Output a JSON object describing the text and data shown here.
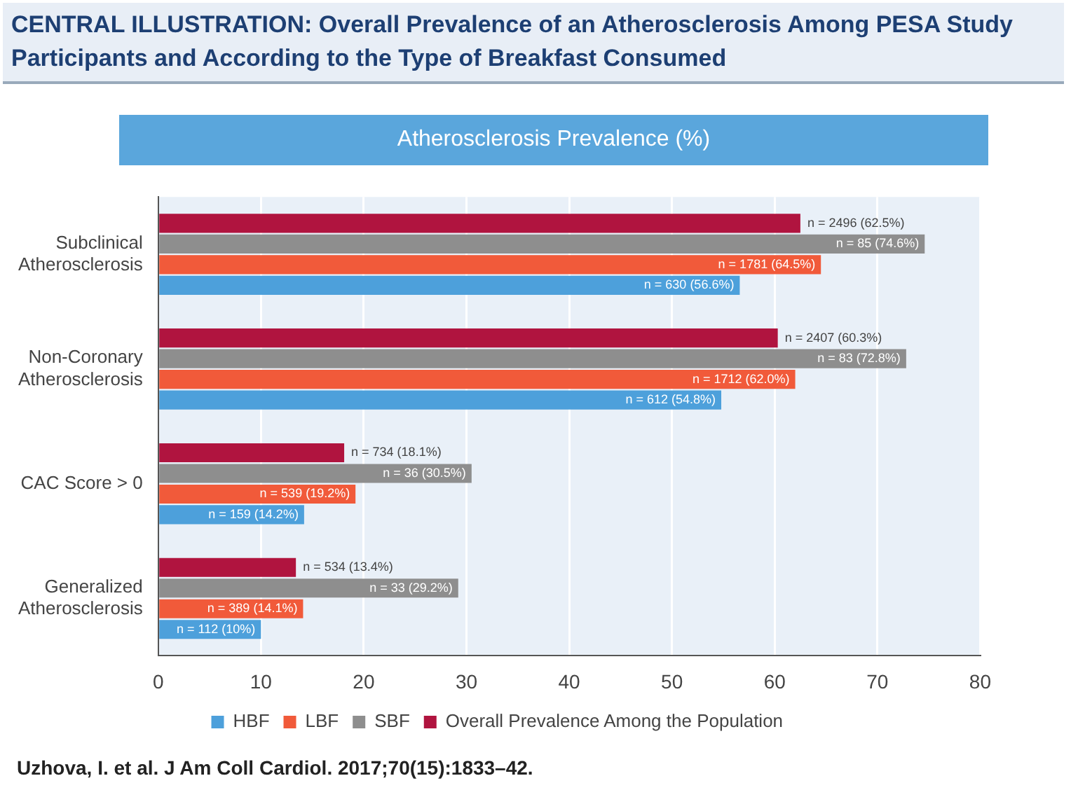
{
  "chart_data": {
    "type": "bar",
    "orientation": "horizontal",
    "title": "CENTRAL ILLUSTRATION: Overall Prevalence of an Atherosclerosis Among PESA Study Participants and According to the Type of Breakfast Consumed",
    "subtitle": "Atherosclerosis Prevalence (%)",
    "categories": [
      "Subclinical Atherosclerosis",
      "Non-Coronary Atherosclerosis",
      "CAC Score > 0",
      "Generalized Atherosclerosis"
    ],
    "series": [
      {
        "name": "Overall Prevalence Among the Population",
        "color": "#b0143f",
        "values": [
          62.5,
          60.3,
          18.1,
          13.4
        ],
        "value_labels": [
          "n = 2496 (62.5%)",
          "n = 2407 (60.3%)",
          "n = 734 (18.1%)",
          "n = 534 (13.4%)"
        ]
      },
      {
        "name": "SBF",
        "color": "#8e8e8e",
        "values": [
          74.6,
          72.8,
          30.5,
          29.2
        ],
        "value_labels": [
          "n = 85 (74.6%)",
          "n = 83 (72.8%)",
          "n = 36 (30.5%)",
          "n = 33 (29.2%)"
        ]
      },
      {
        "name": "LBF",
        "color": "#f15a3a",
        "values": [
          64.5,
          62.0,
          19.2,
          14.1
        ],
        "value_labels": [
          "n = 1781 (64.5%)",
          "n = 1712 (62.0%)",
          "n = 539 (19.2%)",
          "n = 389 (14.1%)"
        ]
      },
      {
        "name": "HBF",
        "color": "#4da0db",
        "values": [
          56.6,
          54.8,
          14.2,
          10
        ],
        "value_labels": [
          "n = 630 (56.6%)",
          "n = 612 (54.8%)",
          "n = 159 (14.2%)",
          "n = 112 (10%)"
        ]
      }
    ],
    "xlim": [
      0,
      80
    ],
    "xticks": [
      0,
      10,
      20,
      30,
      40,
      50,
      60,
      70,
      80
    ],
    "grid": "x",
    "legend": "bottom",
    "annotations": [
      "Uzhova, I. et al. J Am Coll Cardiol. 2017;70(15):1833–42."
    ]
  }
}
